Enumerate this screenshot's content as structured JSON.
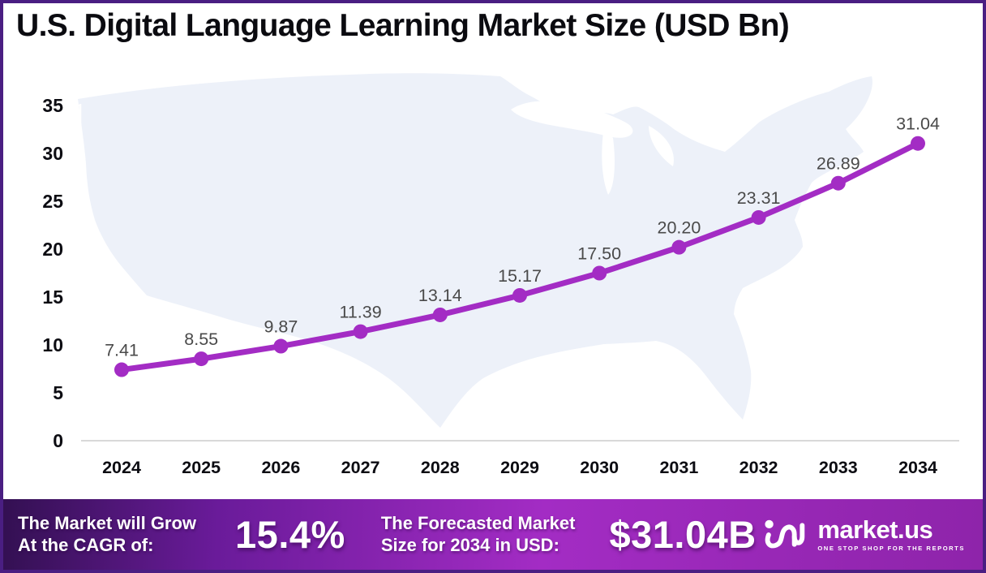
{
  "title": "U.S. Digital Language Learning Market Size (USD Bn)",
  "chart_data": {
    "type": "line",
    "title": "U.S. Digital Language Learning Market Size (USD Bn)",
    "categories": [
      "2024",
      "2025",
      "2026",
      "2027",
      "2028",
      "2029",
      "2030",
      "2031",
      "2032",
      "2033",
      "2034"
    ],
    "series": [
      {
        "name": "U.S. Digital Language Learning Market Size (USD Bn)",
        "values": [
          7.41,
          8.55,
          9.87,
          11.39,
          13.14,
          15.17,
          17.5,
          20.2,
          23.31,
          26.89,
          31.04
        ]
      }
    ],
    "xlabel": "",
    "ylabel": "",
    "ylim": [
      0,
      35
    ],
    "y_axis_ticks": [
      0,
      5,
      10,
      15,
      20,
      25,
      30,
      35
    ],
    "grid": false,
    "legend": false,
    "line_color": "#A32CC4",
    "marker_color": "#A32CC4",
    "data_label_color": "#4A4A4A",
    "axis_label_color": "#0C0C12",
    "baseline_color": "#D9D9D9",
    "background_map_color": "#EDF1F9"
  },
  "banner": {
    "cagr_label_line1": "The Market will Grow",
    "cagr_label_line2": "At the CAGR of:",
    "cagr_value": "15.4%",
    "forecast_label_line1": "The Forecasted Market",
    "forecast_label_line2": "Size for 2034 in USD:",
    "forecast_value": "$31.04B",
    "logo_text": "market.us",
    "logo_tagline": "ONE STOP SHOP FOR THE REPORTS"
  },
  "colors": {
    "frame_border": "#4A1E82",
    "banner_gradient_left": "#331052",
    "banner_gradient_mid": "#A32CC4",
    "banner_gradient_right": "#8E24AA",
    "title_color": "#0B0B10"
  }
}
